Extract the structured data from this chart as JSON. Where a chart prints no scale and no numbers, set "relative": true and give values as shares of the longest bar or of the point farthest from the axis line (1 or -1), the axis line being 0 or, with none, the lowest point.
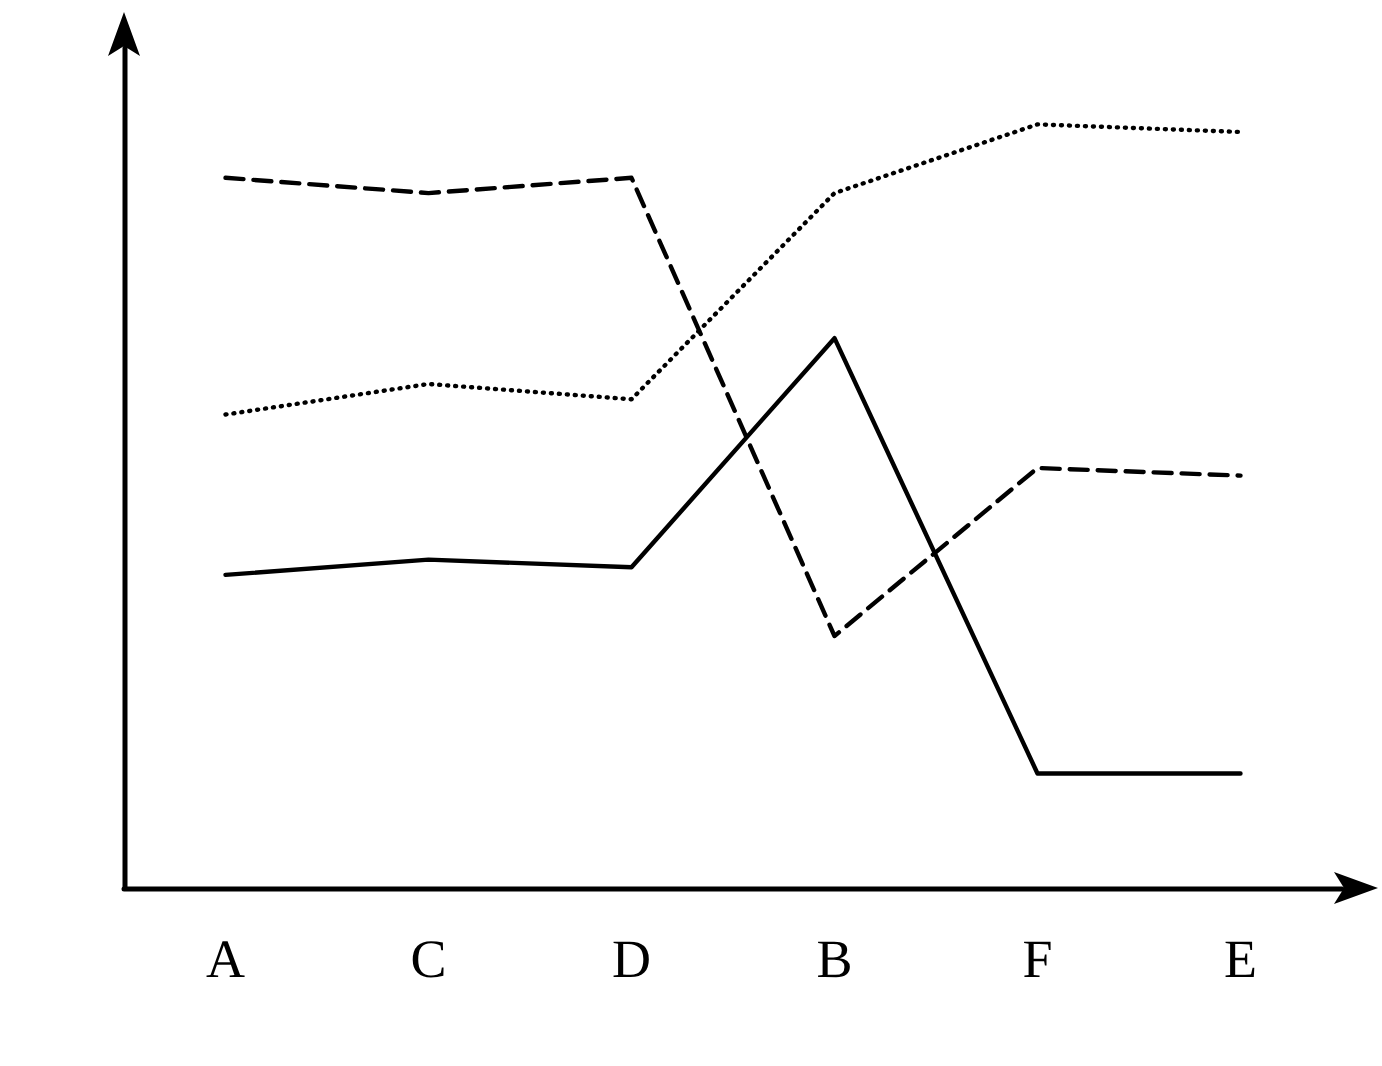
{
  "chart_data": {
    "type": "line",
    "relative": true,
    "categories": [
      "A",
      "C",
      "D",
      "B",
      "F",
      "E"
    ],
    "series": [
      {
        "color": "#000000",
        "line_style": "solid",
        "values": [
          0.41,
          0.43,
          0.42,
          0.72,
          0.15,
          0.15
        ]
      },
      {
        "color": "#000000",
        "line_style": "dotted",
        "values": [
          0.62,
          0.66,
          0.64,
          0.91,
          1.0,
          0.99
        ]
      },
      {
        "color": "#000000",
        "line_style": "dashed",
        "values": [
          0.93,
          0.91,
          0.93,
          0.33,
          0.55,
          0.54
        ]
      }
    ],
    "marker": "none",
    "grid": false
  }
}
